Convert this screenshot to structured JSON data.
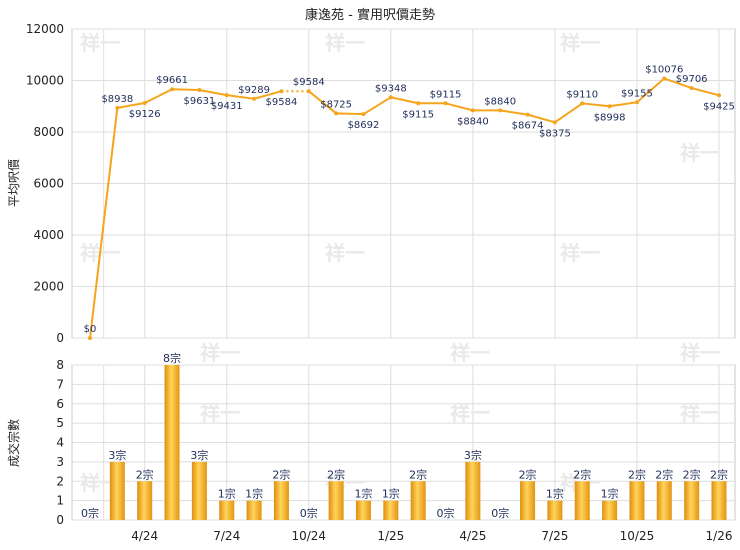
{
  "chart_data": [
    {
      "type": "line",
      "title": "康逸苑 - 實用呎價走勢",
      "ylabel": "平均呎價",
      "ylim": [
        0,
        12000
      ],
      "yticks": [
        0,
        2000,
        4000,
        6000,
        8000,
        10000,
        12000
      ],
      "color": "#f5a51c",
      "x_tick_labels": [
        "4/24",
        "7/24",
        "10/24",
        "1/25",
        "4/25",
        "7/25",
        "10/25",
        "1/26"
      ],
      "values": [
        0,
        8938,
        9126,
        9661,
        9631,
        9431,
        9289,
        9584,
        9584,
        8725,
        8692,
        9348,
        9115,
        9115,
        8840,
        8840,
        8674,
        8375,
        9110,
        8998,
        9155,
        10076,
        9706,
        9425
      ],
      "labels": [
        "$0",
        "$8938",
        "$9126",
        "$9661",
        "$9631",
        "$9431",
        "$9289",
        "$9584",
        "$9584",
        "$8725",
        "$8692",
        "$9348",
        "$9115",
        "$9115",
        "$8840",
        "$8840",
        "$8674",
        "$8375",
        "$9110",
        "$8998",
        "$9155",
        "$10076",
        "$9706",
        "$9425"
      ],
      "dashed_segments": [
        [
          7,
          8
        ]
      ],
      "grid": true
    },
    {
      "type": "bar",
      "ylabel": "成交宗數",
      "ylim": [
        0,
        8
      ],
      "yticks": [
        0,
        1,
        2,
        3,
        4,
        5,
        6,
        7,
        8
      ],
      "color": "#f0a81e",
      "values": [
        0,
        3,
        2,
        8,
        3,
        1,
        1,
        2,
        0,
        2,
        1,
        1,
        2,
        0,
        3,
        0,
        2,
        1,
        2,
        1,
        2,
        2,
        2,
        2
      ],
      "labels": [
        "0宗",
        "3宗",
        "2宗",
        "8宗",
        "3宗",
        "1宗",
        "1宗",
        "2宗",
        "0宗",
        "2宗",
        "1宗",
        "1宗",
        "2宗",
        "0宗",
        "3宗",
        "0宗",
        "2宗",
        "1宗",
        "2宗",
        "1宗",
        "2宗",
        "2宗",
        "2宗",
        "2宗"
      ],
      "x_tick_labels": [
        "4/24",
        "7/24",
        "10/24",
        "1/25",
        "4/25",
        "7/25",
        "10/25",
        "1/26"
      ],
      "grid": true
    }
  ],
  "watermark": "祥一"
}
